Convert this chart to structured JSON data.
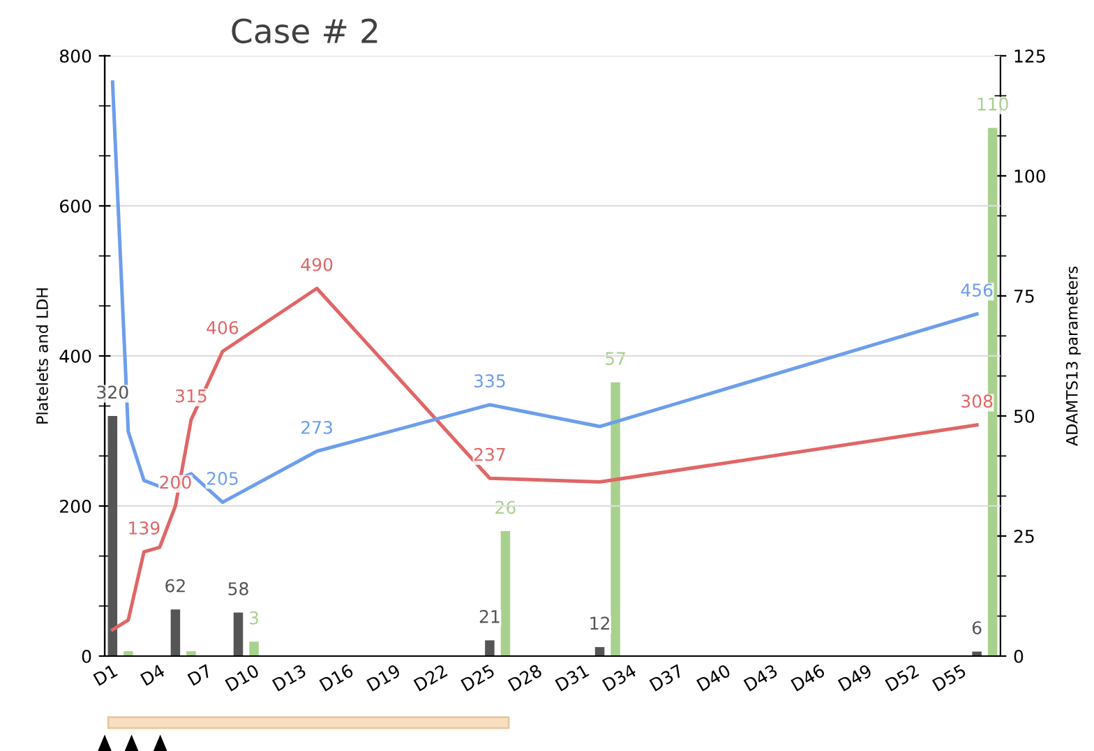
{
  "chart_data": {
    "type": "line",
    "title": "Case # 2",
    "ylabel": "Platelets and LDH",
    "y2label": "ADAMTS13 parameters",
    "categories": [
      "D1",
      null,
      null,
      "D4",
      null,
      null,
      "D7",
      null,
      null,
      "D10",
      null,
      null,
      "D13",
      null,
      null,
      "D16",
      null,
      null,
      "D19",
      null,
      null,
      "D22",
      null,
      null,
      "D25",
      null,
      null,
      "D28",
      null,
      null,
      "D31",
      null,
      null,
      "D34",
      null,
      null,
      "D37",
      null,
      null,
      "D40",
      null,
      null,
      "D43",
      null,
      null,
      "D46",
      null,
      null,
      "D49",
      null,
      null,
      "D52",
      null,
      null,
      "D55",
      null,
      null
    ],
    "ylim": [
      0,
      800
    ],
    "yticks": [
      0,
      {
        "value": 66.7,
        "label": null
      },
      {
        "value": 133.3,
        "label": null
      },
      200,
      {
        "value": 266.7,
        "label": null
      },
      {
        "value": 333.3,
        "label": null
      },
      400,
      {
        "value": 466.7,
        "label": null
      },
      {
        "value": 533.3,
        "label": null
      },
      600,
      {
        "value": 666.7,
        "label": null
      },
      {
        "value": 733.3,
        "label": null
      },
      800
    ],
    "y2lim": [
      0,
      125
    ],
    "y2ticks": [
      0,
      {
        "value": 8.33,
        "label": null
      },
      {
        "value": 16.67,
        "label": null
      },
      25,
      {
        "value": 33.33,
        "label": null
      },
      {
        "value": 41.67,
        "label": null
      },
      50,
      {
        "value": 58.33,
        "label": null
      },
      {
        "value": 66.67,
        "label": null
      },
      75,
      {
        "value": 83.33,
        "label": null
      },
      {
        "value": 91.67,
        "label": null
      },
      100,
      {
        "value": 108.33,
        "label": null
      },
      {
        "value": 116.67,
        "label": null
      },
      125
    ],
    "grid": "y",
    "marker": "none",
    "line_style": "solid",
    "series": [
      {
        "type": "bar",
        "color": "#555555",
        "values": [
          320,
          null,
          null,
          null,
          62,
          null,
          null,
          null,
          58,
          null,
          null,
          null,
          null,
          null,
          null,
          null,
          null,
          null,
          null,
          null,
          null,
          null,
          null,
          null,
          21,
          null,
          null,
          null,
          null,
          null,
          null,
          12,
          null,
          null,
          null,
          null,
          null,
          null,
          null,
          null,
          null,
          null,
          null,
          null,
          null,
          null,
          null,
          null,
          null,
          null,
          null,
          null,
          null,
          null,
          null,
          6,
          null
        ],
        "value_labels": [
          "320",
          null,
          null,
          null,
          "62",
          null,
          null,
          null,
          "58",
          null,
          null,
          null,
          null,
          null,
          null,
          null,
          null,
          null,
          null,
          null,
          null,
          null,
          null,
          null,
          "21",
          null,
          null,
          null,
          null,
          null,
          null,
          "12",
          null,
          null,
          null,
          null,
          null,
          null,
          null,
          null,
          null,
          null,
          null,
          null,
          null,
          null,
          null,
          null,
          null,
          null,
          null,
          null,
          null,
          null,
          null,
          "6",
          null
        ]
      },
      {
        "type": "bar",
        "axis": "y2",
        "color": "#a9d18e",
        "values": [
          null,
          1,
          null,
          null,
          null,
          1,
          null,
          null,
          null,
          3,
          null,
          null,
          null,
          null,
          null,
          null,
          null,
          null,
          null,
          null,
          null,
          null,
          null,
          null,
          null,
          26,
          null,
          null,
          null,
          null,
          null,
          null,
          57,
          null,
          null,
          null,
          null,
          null,
          null,
          null,
          null,
          null,
          null,
          null,
          null,
          null,
          null,
          null,
          null,
          null,
          null,
          null,
          null,
          null,
          null,
          null,
          110
        ],
        "value_labels": [
          null,
          null,
          null,
          null,
          null,
          null,
          null,
          null,
          null,
          "3",
          null,
          null,
          null,
          null,
          null,
          null,
          null,
          null,
          null,
          null,
          null,
          null,
          null,
          null,
          null,
          "26",
          null,
          null,
          null,
          null,
          null,
          null,
          "57",
          null,
          null,
          null,
          null,
          null,
          null,
          null,
          null,
          null,
          null,
          null,
          null,
          null,
          null,
          null,
          null,
          null,
          null,
          null,
          null,
          null,
          null,
          null,
          "110"
        ]
      },
      {
        "color": "#e06666",
        "values": [
          35,
          48,
          139,
          145,
          200,
          315,
          null,
          406,
          null,
          null,
          null,
          null,
          null,
          490,
          null,
          null,
          null,
          null,
          null,
          null,
          null,
          null,
          null,
          null,
          237,
          null,
          null,
          null,
          null,
          null,
          null,
          232,
          null,
          null,
          null,
          null,
          null,
          null,
          null,
          null,
          null,
          null,
          null,
          null,
          null,
          null,
          null,
          null,
          null,
          null,
          null,
          null,
          null,
          null,
          null,
          308,
          null
        ],
        "value_labels": [
          null,
          null,
          "139",
          null,
          "200",
          "315",
          null,
          "406",
          null,
          null,
          null,
          null,
          null,
          "490",
          null,
          null,
          null,
          null,
          null,
          null,
          null,
          null,
          null,
          null,
          "237",
          null,
          null,
          null,
          null,
          null,
          null,
          null,
          null,
          null,
          null,
          null,
          null,
          null,
          null,
          null,
          null,
          null,
          null,
          null,
          null,
          null,
          null,
          null,
          null,
          null,
          null,
          null,
          null,
          null,
          null,
          "308",
          null
        ]
      },
      {
        "color": "#6d9eeb",
        "values": [
          765,
          299,
          234,
          226,
          null,
          243,
          null,
          205,
          null,
          null,
          null,
          null,
          null,
          273,
          null,
          null,
          null,
          null,
          null,
          null,
          null,
          null,
          null,
          null,
          335,
          null,
          null,
          null,
          null,
          null,
          null,
          306,
          null,
          null,
          null,
          null,
          null,
          null,
          null,
          null,
          null,
          null,
          null,
          null,
          null,
          null,
          null,
          null,
          null,
          null,
          null,
          null,
          null,
          null,
          null,
          456,
          null
        ],
        "value_labels": [
          null,
          null,
          null,
          null,
          null,
          null,
          null,
          "205",
          null,
          null,
          null,
          null,
          null,
          "273",
          null,
          null,
          null,
          null,
          null,
          null,
          null,
          null,
          null,
          null,
          "335",
          null,
          null,
          null,
          null,
          null,
          null,
          null,
          null,
          null,
          null,
          null,
          null,
          null,
          null,
          null,
          null,
          null,
          null,
          null,
          null,
          null,
          null,
          null,
          null,
          null,
          null,
          null,
          null,
          null,
          null,
          "456",
          null
        ]
      }
    ]
  }
}
